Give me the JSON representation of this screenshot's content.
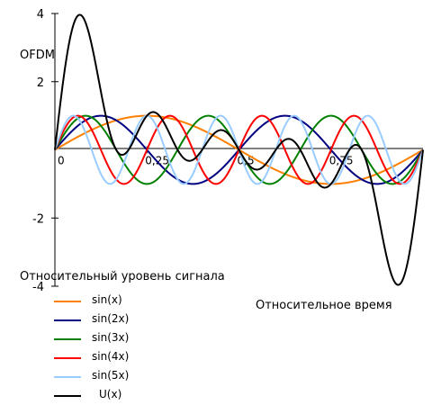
{
  "chart_data": {
    "type": "line",
    "title": "OFDM",
    "xlabel": "Относительное время",
    "ylabel": "Относительный уровень сигнала",
    "xlim": [
      0,
      1
    ],
    "ylim": [
      -4,
      4
    ],
    "x_ticks": [
      {
        "value": 0,
        "label": "0"
      },
      {
        "value": 0.25,
        "label": "0,25"
      },
      {
        "value": 0.5,
        "label": "0,5"
      },
      {
        "value": 0.75,
        "label": "0,75"
      }
    ],
    "y_ticks": [
      {
        "value": 4,
        "label": "4"
      },
      {
        "value": 2,
        "label": "2"
      },
      {
        "value": -2,
        "label": "-2"
      },
      {
        "value": -4,
        "label": "-4"
      }
    ],
    "series": [
      {
        "name": "sin(x)",
        "color": "#ff7f00",
        "harmonic": 1
      },
      {
        "name": "sin(2x)",
        "color": "#000080",
        "harmonic": 2
      },
      {
        "name": "sin(3x)",
        "color": "#008000",
        "harmonic": 3
      },
      {
        "name": "sin(4x)",
        "color": "#ff0000",
        "harmonic": 4
      },
      {
        "name": "sin(5x)",
        "color": "#99ccff",
        "harmonic": 5
      },
      {
        "name": "U(x)",
        "color": "#000000",
        "sum_of": [
          1,
          2,
          3,
          4,
          5
        ]
      }
    ],
    "x": [
      0,
      0.125,
      0.25,
      0.375,
      0.5,
      0.625,
      0.75,
      0.875,
      1
    ],
    "legend_position": "bottom-left",
    "grid": false
  }
}
